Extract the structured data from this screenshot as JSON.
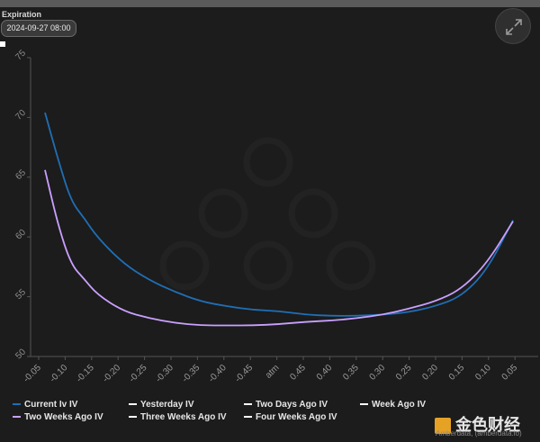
{
  "header": {
    "expiration_label": "Expiration",
    "expiration_value": "2024-09-27 08:00",
    "expand_icon": "expand-arrows-icon"
  },
  "chart_data": {
    "type": "line",
    "title": "",
    "xlabel": "",
    "ylabel": "",
    "ylim": [
      50,
      75
    ],
    "yticks": [
      50,
      55,
      60,
      65,
      70,
      75
    ],
    "categories": [
      "-0.05",
      "-0.10",
      "-0.15",
      "-0.20",
      "-0.25",
      "-0.30",
      "-0.35",
      "-0.40",
      "-0.45",
      "atm",
      "0.45",
      "0.40",
      "0.35",
      "0.30",
      "0.25",
      "0.20",
      "0.15",
      "0.10",
      "0.05"
    ],
    "grid": false,
    "legend_position": "bottom",
    "series": [
      {
        "name": "Current Iv IV",
        "color": "#1f6fb5",
        "points": [
          [
            0,
            70.4
          ],
          [
            0.5,
            66.5
          ],
          [
            1,
            63.0
          ],
          [
            1.5,
            61.6
          ],
          [
            2,
            60.0
          ],
          [
            3,
            57.8
          ],
          [
            4,
            56.4
          ],
          [
            5,
            55.4
          ],
          [
            6,
            54.6
          ],
          [
            7,
            54.2
          ],
          [
            8,
            53.9
          ],
          [
            9,
            53.8
          ],
          [
            10,
            53.5
          ],
          [
            11,
            53.4
          ],
          [
            12,
            53.4
          ],
          [
            13,
            53.5
          ],
          [
            14,
            53.7
          ],
          [
            15,
            54.2
          ],
          [
            16,
            55.0
          ],
          [
            17,
            57.2
          ],
          [
            18,
            61.4
          ]
        ]
      },
      {
        "name": "Two Weeks Ago IV",
        "color": "#c9a0ff",
        "points": [
          [
            0,
            65.6
          ],
          [
            0.5,
            61.0
          ],
          [
            1,
            57.7
          ],
          [
            1.5,
            56.5
          ],
          [
            2,
            55.2
          ],
          [
            3,
            53.8
          ],
          [
            4,
            53.2
          ],
          [
            5,
            52.8
          ],
          [
            6,
            52.6
          ],
          [
            7,
            52.6
          ],
          [
            8,
            52.6
          ],
          [
            9,
            52.7
          ],
          [
            10,
            52.9
          ],
          [
            11,
            53.0
          ],
          [
            12,
            53.2
          ],
          [
            13,
            53.5
          ],
          [
            14,
            54.0
          ],
          [
            15,
            54.6
          ],
          [
            16,
            55.6
          ],
          [
            17,
            57.8
          ],
          [
            18,
            61.3
          ]
        ]
      },
      {
        "name": "Yesterday IV",
        "color": "#ffffff",
        "points": []
      },
      {
        "name": "Two Days Ago IV",
        "color": "#ffffff",
        "points": []
      },
      {
        "name": "Week Ago IV",
        "color": "#ffffff",
        "points": []
      },
      {
        "name": "Three Weeks Ago IV",
        "color": "#ffffff",
        "points": []
      },
      {
        "name": "Four Weeks Ago IV",
        "color": "#ffffff",
        "points": []
      }
    ]
  },
  "legend": {
    "items": [
      {
        "label": "Current Iv IV",
        "color": "#1f6fb5"
      },
      {
        "label": "Yesterday IV",
        "color": "#ffffff"
      },
      {
        "label": "Two Days Ago IV",
        "color": "#ffffff"
      },
      {
        "label": "Week Ago IV",
        "color": "#ffffff"
      },
      {
        "label": "Two Weeks Ago IV",
        "color": "#c9a0ff"
      },
      {
        "label": "Three Weeks Ago IV",
        "color": "#ffffff"
      },
      {
        "label": "Four Weeks Ago IV",
        "color": "#ffffff"
      }
    ]
  },
  "footer": {
    "brand_text": "金色财经",
    "credit": "Amberdata, (amberdata.io)"
  }
}
